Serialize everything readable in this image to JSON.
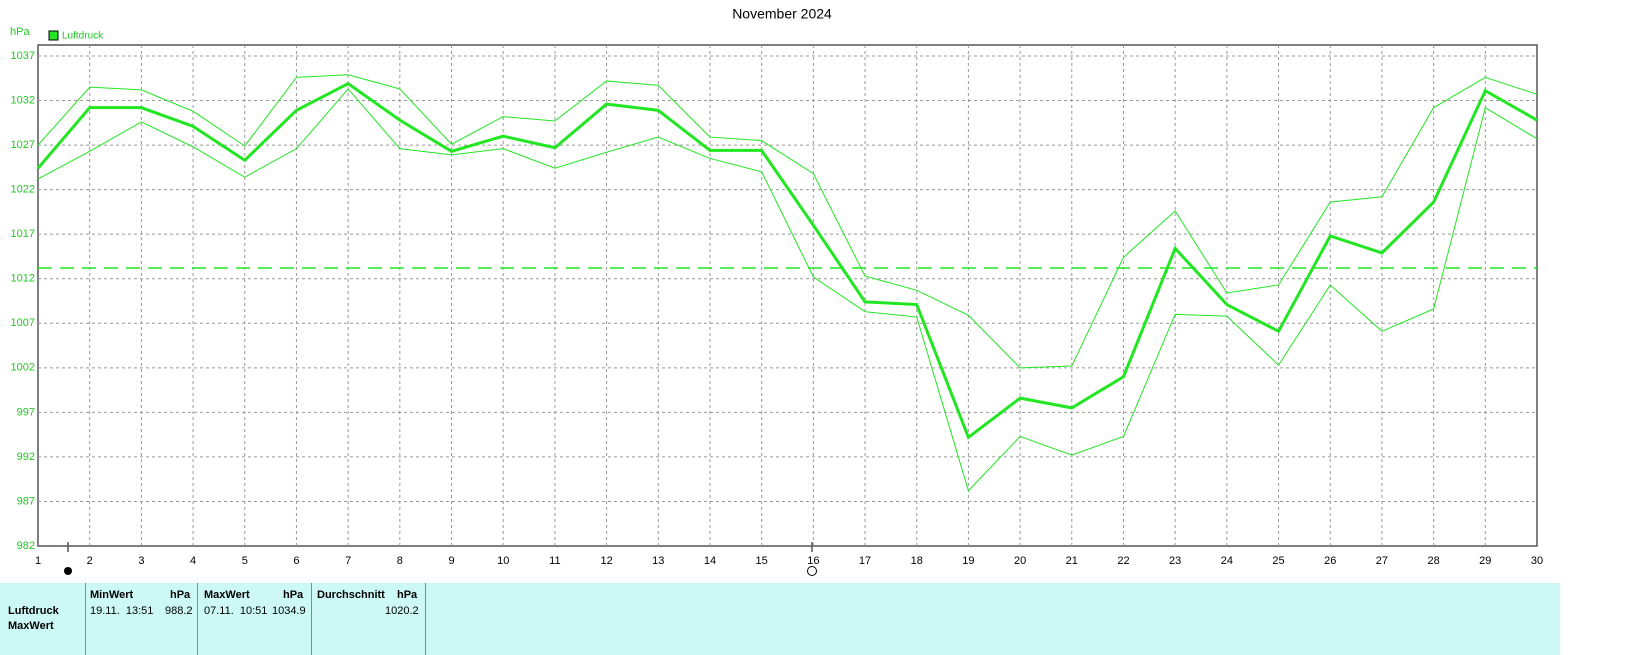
{
  "chart_data": {
    "type": "line",
    "title": "November 2024",
    "y_unit": "hPa",
    "legend": "top-left",
    "x": [
      1,
      2,
      3,
      4,
      5,
      6,
      7,
      8,
      9,
      10,
      11,
      12,
      13,
      14,
      15,
      16,
      17,
      18,
      19,
      20,
      21,
      22,
      23,
      24,
      25,
      26,
      27,
      28,
      29,
      30
    ],
    "xlim": [
      1,
      30
    ],
    "xticks": [
      1,
      2,
      3,
      4,
      5,
      6,
      7,
      8,
      9,
      10,
      11,
      12,
      13,
      14,
      15,
      16,
      17,
      18,
      19,
      20,
      21,
      22,
      23,
      24,
      25,
      26,
      27,
      28,
      29,
      30
    ],
    "ylim": [
      982,
      1037
    ],
    "yticks": [
      982,
      987,
      992,
      997,
      1002,
      1007,
      1012,
      1017,
      1022,
      1027,
      1032,
      1037
    ],
    "grid": true,
    "reference_line": 1013.2,
    "series": [
      {
        "name": "Luftdruck",
        "color": "#22e622",
        "values": [
          1024.4,
          1031.2,
          1031.2,
          1029.1,
          1025.3,
          1030.9,
          1033.9,
          1029.8,
          1026.3,
          1028.0,
          1026.7,
          1031.6,
          1030.9,
          1026.4,
          1026.4,
          1018.0,
          1009.4,
          1009.1,
          994.2,
          998.6,
          997.5,
          1001.0,
          1015.4,
          1009.1,
          1006.1,
          1016.8,
          1014.9,
          1020.6,
          1033.1,
          1029.8
        ]
      },
      {
        "color": "#22e622",
        "values": [
          1027.0,
          1033.5,
          1033.2,
          1030.8,
          1026.9,
          1034.6,
          1034.9,
          1033.3,
          1027.1,
          1030.2,
          1029.7,
          1034.2,
          1033.7,
          1027.9,
          1027.5,
          1023.8,
          1012.3,
          1010.7,
          1007.9,
          1002.0,
          1002.2,
          1014.4,
          1019.6,
          1010.4,
          1011.3,
          1020.6,
          1021.2,
          1031.2,
          1034.6,
          1032.7
        ]
      },
      {
        "color": "#22e622",
        "values": [
          1023.2,
          1026.3,
          1029.6,
          1026.8,
          1023.4,
          1026.6,
          1033.3,
          1026.6,
          1025.9,
          1026.6,
          1024.4,
          1026.2,
          1027.9,
          1025.5,
          1024.0,
          1012.2,
          1008.3,
          1007.7,
          988.2,
          994.3,
          992.2,
          994.3,
          1008.0,
          1007.8,
          1002.3,
          1011.3,
          1006.1,
          1008.6,
          1031.2,
          1027.7
        ]
      }
    ]
  },
  "table": {
    "header": [
      "",
      "MinWert",
      "hPa",
      "MaxWert",
      "hPa",
      "Durchschnitt",
      "hPa"
    ],
    "rows": [
      [
        "Luftdruck",
        "19.11.  13:51",
        988.2,
        "07.11.  10:51",
        1034.9,
        "",
        1020.2
      ],
      [
        "MaxWert"
      ]
    ]
  }
}
